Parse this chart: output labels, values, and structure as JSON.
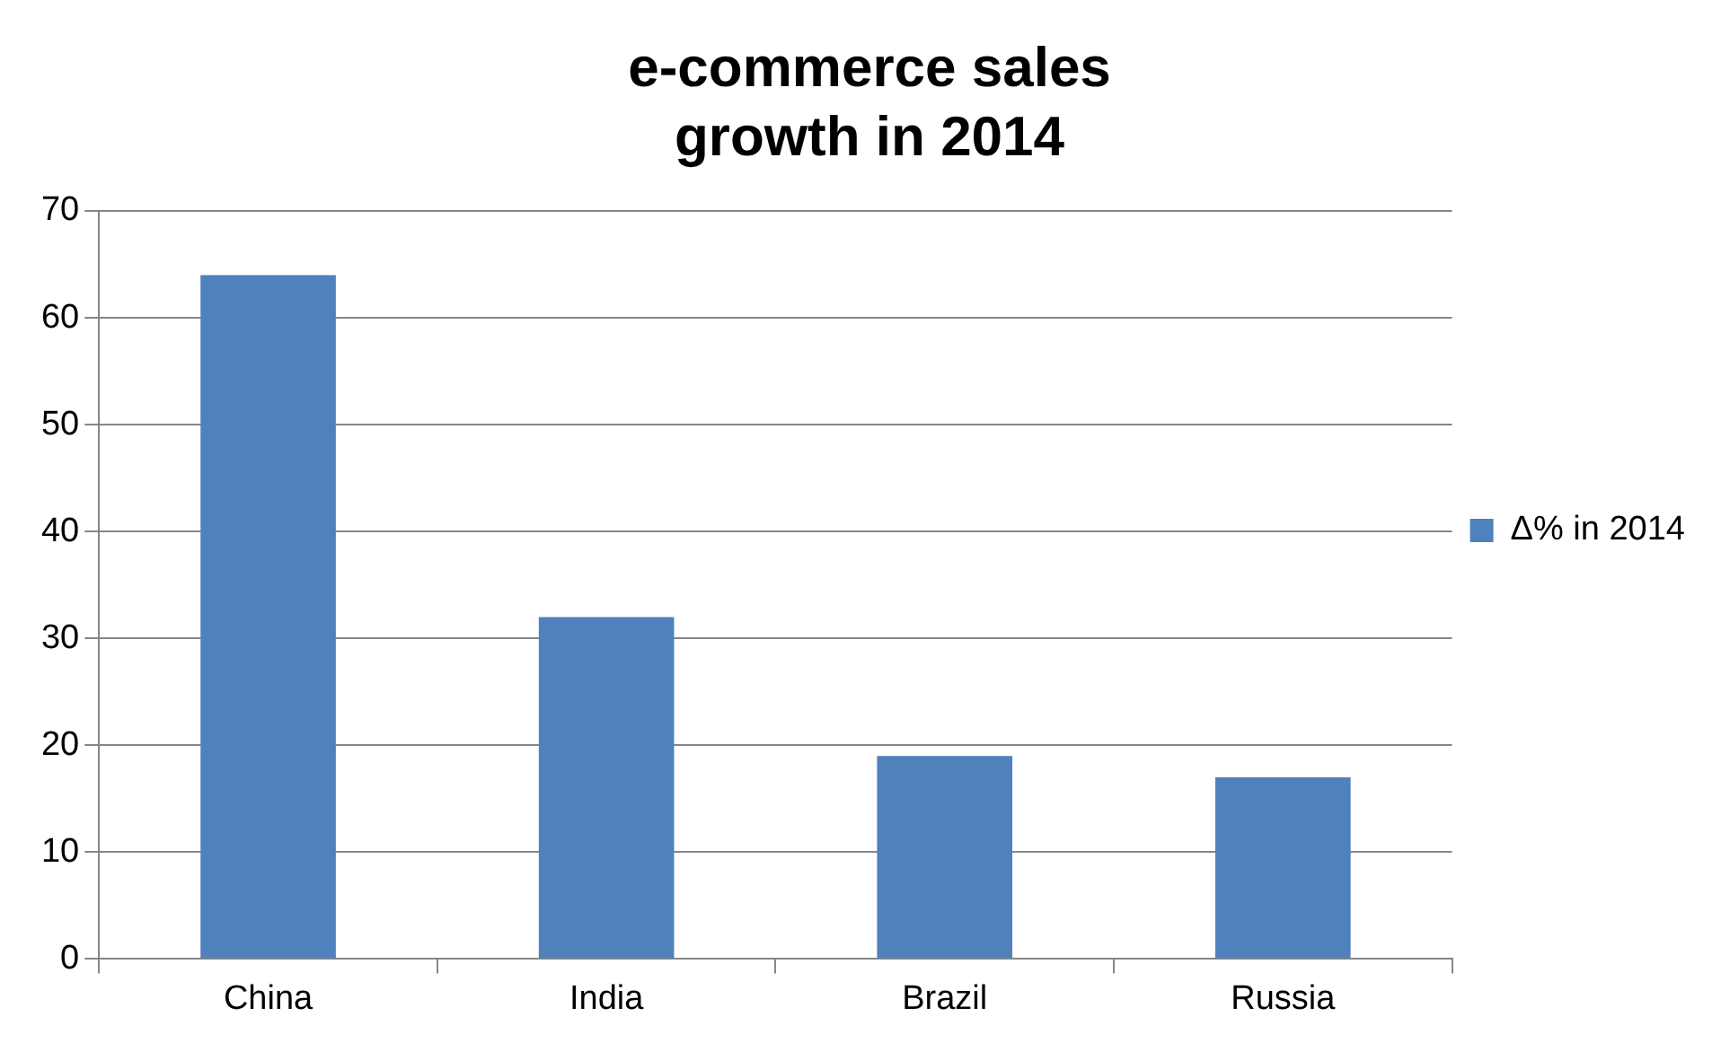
{
  "chart_data": {
    "type": "bar",
    "title": "e-commerce sales\ngrowth in 2014",
    "categories": [
      "China",
      "India",
      "Brazil",
      "Russia"
    ],
    "series": [
      {
        "name": "Δ% in 2014",
        "color": "#4f81bd",
        "values": [
          64,
          32,
          19,
          17
        ]
      }
    ],
    "ylim": [
      0,
      70
    ],
    "yticks": [
      0,
      10,
      20,
      30,
      40,
      50,
      60,
      70
    ],
    "grid": "y",
    "legend": "right"
  }
}
